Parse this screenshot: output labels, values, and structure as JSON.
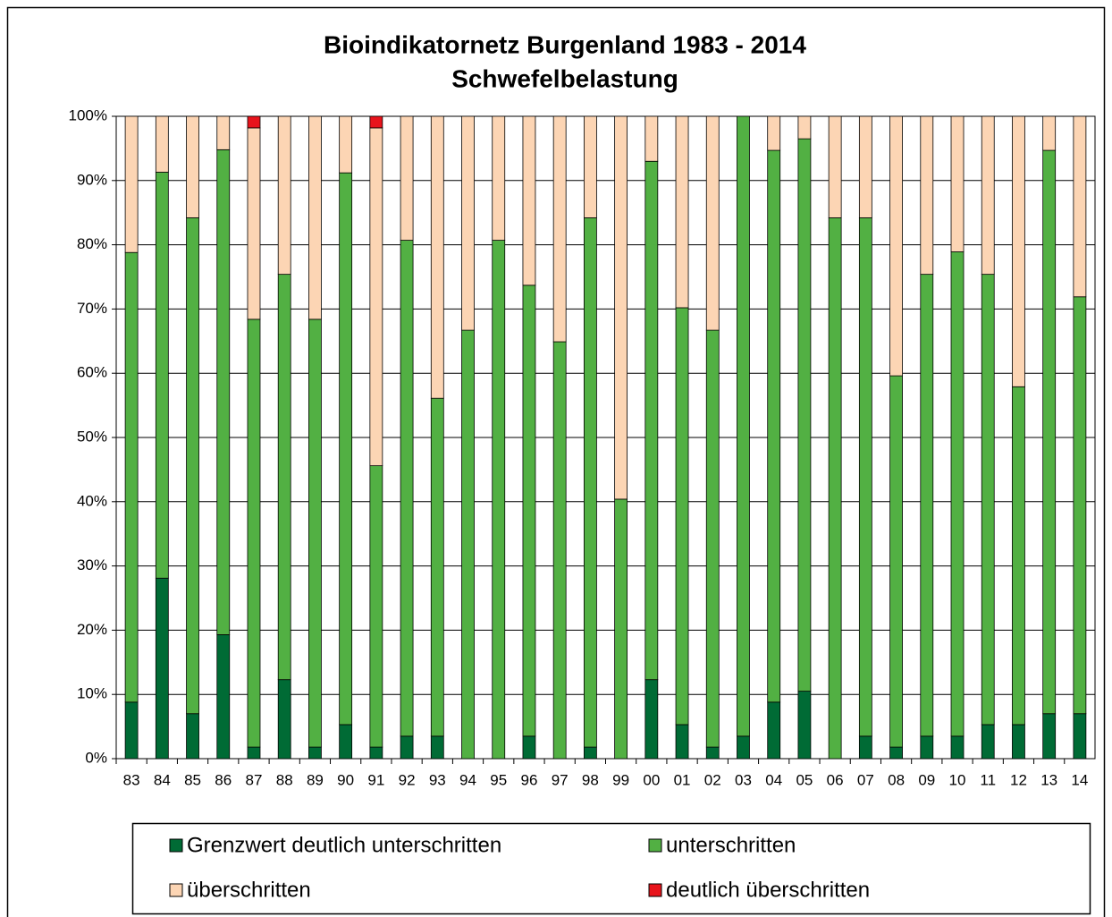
{
  "chart_data": {
    "type": "stacked_bar",
    "title": "Bioindikatornetz Burgenland 1983 - 2014",
    "subtitle": "Schwefelbelastung",
    "categories": [
      "83",
      "84",
      "85",
      "86",
      "87",
      "88",
      "89",
      "90",
      "91",
      "92",
      "93",
      "94",
      "95",
      "96",
      "97",
      "98",
      "99",
      "00",
      "01",
      "02",
      "03",
      "04",
      "05",
      "06",
      "07",
      "08",
      "09",
      "10",
      "11",
      "12",
      "13",
      "14"
    ],
    "series": [
      {
        "name": "Grenzwert deutlich unterschritten",
        "color": "#006b35",
        "values": [
          8.8,
          28.1,
          7.0,
          19.3,
          1.8,
          12.3,
          1.8,
          5.3,
          1.8,
          3.5,
          3.5,
          0,
          0,
          3.5,
          0,
          1.8,
          0,
          12.3,
          5.3,
          1.8,
          3.5,
          8.8,
          10.5,
          0,
          3.5,
          1.8,
          3.5,
          3.5,
          5.3,
          5.3,
          7.0,
          7.0
        ]
      },
      {
        "name": "unterschritten",
        "color": "#52b043",
        "values": [
          70.0,
          63.2,
          77.2,
          75.5,
          66.6,
          63.1,
          66.6,
          85.9,
          43.8,
          77.2,
          52.6,
          66.7,
          80.7,
          70.2,
          64.9,
          82.4,
          40.4,
          80.7,
          64.9,
          64.9,
          96.5,
          85.9,
          86.0,
          84.2,
          80.7,
          57.8,
          71.9,
          75.4,
          70.1,
          52.6,
          87.7,
          64.9
        ]
      },
      {
        "name": "überschritten",
        "color": "#fcd5b4",
        "values": [
          21.2,
          8.7,
          15.8,
          5.2,
          29.8,
          24.6,
          31.6,
          8.8,
          52.6,
          19.3,
          43.9,
          33.3,
          19.3,
          26.3,
          35.1,
          15.8,
          59.6,
          7.0,
          29.8,
          33.3,
          0,
          5.3,
          3.5,
          15.8,
          15.8,
          40.4,
          24.6,
          21.1,
          24.6,
          42.1,
          5.3,
          28.1
        ]
      },
      {
        "name": "deutlich überschritten",
        "color": "#e8141c",
        "values": [
          0,
          0,
          0,
          0,
          1.8,
          0,
          0,
          0,
          1.8,
          0,
          0,
          0,
          0,
          0,
          0,
          0,
          0,
          0,
          0,
          0,
          0,
          0,
          0,
          0,
          0,
          0,
          0,
          0,
          0,
          0,
          0,
          0
        ]
      }
    ],
    "ylim": [
      0,
      100
    ],
    "yticks": [
      {
        "value": 0,
        "label": "0%"
      },
      {
        "value": 10,
        "label": "10%"
      },
      {
        "value": 20,
        "label": "20%"
      },
      {
        "value": 30,
        "label": "30%"
      },
      {
        "value": 40,
        "label": "40%"
      },
      {
        "value": 50,
        "label": "50%"
      },
      {
        "value": 60,
        "label": "60%"
      },
      {
        "value": 70,
        "label": "70%"
      },
      {
        "value": 80,
        "label": "80%"
      },
      {
        "value": 90,
        "label": "90%"
      },
      {
        "value": 100,
        "label": "100%"
      }
    ],
    "grid": true,
    "legend": "bottom"
  }
}
